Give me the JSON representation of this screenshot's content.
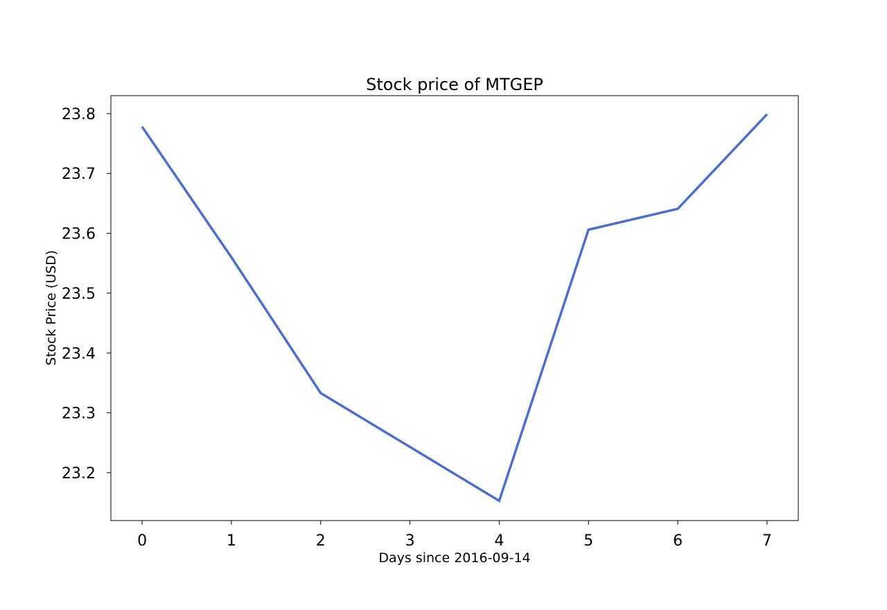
{
  "chart_data": {
    "type": "line",
    "title": "Stock price of MTGEP",
    "xlabel": "Days since 2016-09-14",
    "ylabel": "Stock Price (USD)",
    "x": [
      0,
      1,
      2,
      3,
      4,
      5,
      6,
      7
    ],
    "xticks": [
      "0",
      "1",
      "2",
      "3",
      "4",
      "5",
      "6",
      "7"
    ],
    "yticks": [
      "23.2",
      "23.3",
      "23.4",
      "23.5",
      "23.6",
      "23.7",
      "23.8"
    ],
    "ytick_values": [
      23.2,
      23.3,
      23.4,
      23.5,
      23.6,
      23.7,
      23.8
    ],
    "xlim": [
      -0.35,
      7.35
    ],
    "ylim": [
      23.12,
      23.83
    ],
    "grid": false,
    "series": [
      {
        "values": [
          23.778,
          23.56,
          23.333,
          23.243,
          23.153,
          23.606,
          23.641,
          23.799
        ],
        "color": "#4a6fd3"
      }
    ]
  }
}
